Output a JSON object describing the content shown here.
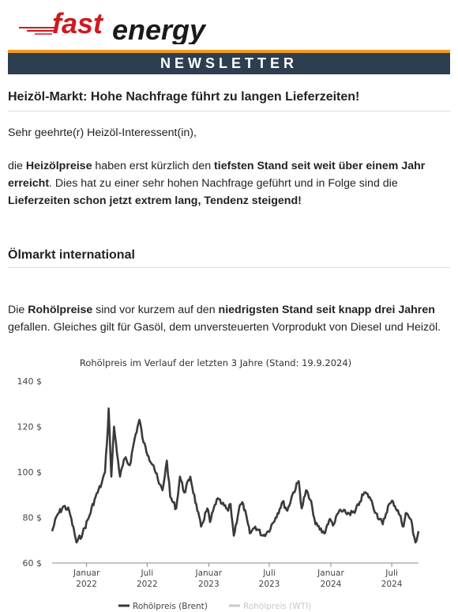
{
  "brand": {
    "part1": "fast",
    "part2": "energy",
    "accent_color": "#d0181f"
  },
  "banner": {
    "label": "NEWSLETTER",
    "bg_color": "#2d3e50",
    "stripe_color": "#f29a1c"
  },
  "headline": "Heizöl-Markt: Hohe Nachfrage führt zu langen Lieferzeiten!",
  "greeting": "Sehr geehrte(r) Heizöl-Interessent(in),",
  "para1": [
    {
      "t": "die ",
      "b": false
    },
    {
      "t": "Heizölpreise",
      "b": true
    },
    {
      "t": " haben erst kürzlich den ",
      "b": false
    },
    {
      "t": "tiefsten Stand seit weit über einem Jahr erreicht",
      "b": true
    },
    {
      "t": ". Dies hat zu einer sehr hohen Nachfrage geführt und in Folge sind die ",
      "b": false
    },
    {
      "t": "Lieferzeiten schon jetzt extrem lang, Tendenz steigend!",
      "b": true
    }
  ],
  "section_title": "Ölmarkt international",
  "para2": [
    {
      "t": "Die ",
      "b": false
    },
    {
      "t": "Rohölpreise",
      "b": true
    },
    {
      "t": " sind vor kurzem auf den ",
      "b": false
    },
    {
      "t": "niedrigsten Stand seit knapp drei Jahren",
      "b": true
    },
    {
      "t": " gefallen. Gleiches gilt für Gasöl, dem unversteuerten Vorprodukt von Diesel und Heizöl.",
      "b": false
    }
  ],
  "chart_data": {
    "type": "line",
    "title": "Rohölpreis im Verlauf der letzten 3 Jahre (Stand: 19.9.2024)",
    "ylim": [
      60,
      140
    ],
    "y_ticks": [
      "60 $",
      "80 $",
      "100 $",
      "120 $",
      "140 $"
    ],
    "x_ticks": [
      {
        "l1": "Januar",
        "l2": "2022",
        "date": "2022-01-01"
      },
      {
        "l1": "Juli",
        "l2": "2022",
        "date": "2022-07-01"
      },
      {
        "l1": "Januar",
        "l2": "2023",
        "date": "2023-01-01"
      },
      {
        "l1": "Juli",
        "l2": "2023",
        "date": "2023-07-01"
      },
      {
        "l1": "Januar",
        "l2": "2024",
        "date": "2024-01-01"
      },
      {
        "l1": "Juli",
        "l2": "2024",
        "date": "2024-07-01"
      }
    ],
    "x_range": [
      "2021-09-20",
      "2024-09-19"
    ],
    "series": [
      {
        "name": "Rohölpreis (Brent)",
        "color": "#3a3a3a",
        "visible": true,
        "points": [
          [
            "2021-09-20",
            74
          ],
          [
            "2021-10-05",
            81
          ],
          [
            "2021-10-25",
            85
          ],
          [
            "2021-11-10",
            83
          ],
          [
            "2021-11-26",
            73
          ],
          [
            "2021-12-02",
            69
          ],
          [
            "2021-12-20",
            73
          ],
          [
            "2022-01-10",
            81
          ],
          [
            "2022-01-25",
            88
          ],
          [
            "2022-02-15",
            95
          ],
          [
            "2022-02-25",
            100
          ],
          [
            "2022-03-03",
            113
          ],
          [
            "2022-03-08",
            128
          ],
          [
            "2022-03-16",
            98
          ],
          [
            "2022-03-24",
            120
          ],
          [
            "2022-04-05",
            105
          ],
          [
            "2022-04-11",
            98
          ],
          [
            "2022-04-25",
            106
          ],
          [
            "2022-05-10",
            103
          ],
          [
            "2022-05-25",
            115
          ],
          [
            "2022-06-08",
            123
          ],
          [
            "2022-06-20",
            113
          ],
          [
            "2022-07-05",
            107
          ],
          [
            "2022-07-20",
            103
          ],
          [
            "2022-08-05",
            95
          ],
          [
            "2022-08-16",
            92
          ],
          [
            "2022-08-29",
            105
          ],
          [
            "2022-09-08",
            89
          ],
          [
            "2022-09-26",
            84
          ],
          [
            "2022-10-07",
            98
          ],
          [
            "2022-10-20",
            91
          ],
          [
            "2022-11-07",
            98
          ],
          [
            "2022-11-28",
            83
          ],
          [
            "2022-12-09",
            76
          ],
          [
            "2022-12-28",
            84
          ],
          [
            "2023-01-05",
            78
          ],
          [
            "2023-01-25",
            88
          ],
          [
            "2023-02-10",
            86
          ],
          [
            "2023-02-28",
            83
          ],
          [
            "2023-03-07",
            86
          ],
          [
            "2023-03-17",
            72
          ],
          [
            "2023-04-03",
            85
          ],
          [
            "2023-04-14",
            86
          ],
          [
            "2023-05-04",
            73
          ],
          [
            "2023-05-20",
            76
          ],
          [
            "2023-06-12",
            72
          ],
          [
            "2023-06-28",
            74
          ],
          [
            "2023-07-20",
            80
          ],
          [
            "2023-08-10",
            87
          ],
          [
            "2023-08-24",
            83
          ],
          [
            "2023-09-08",
            90
          ],
          [
            "2023-09-27",
            96
          ],
          [
            "2023-10-06",
            84
          ],
          [
            "2023-10-19",
            92
          ],
          [
            "2023-11-06",
            85
          ],
          [
            "2023-11-16",
            77
          ],
          [
            "2023-12-12",
            73
          ],
          [
            "2023-12-27",
            79
          ],
          [
            "2024-01-10",
            77
          ],
          [
            "2024-01-26",
            83
          ],
          [
            "2024-02-15",
            82
          ],
          [
            "2024-03-12",
            82
          ],
          [
            "2024-03-28",
            87
          ],
          [
            "2024-04-10",
            91
          ],
          [
            "2024-04-26",
            89
          ],
          [
            "2024-05-15",
            82
          ],
          [
            "2024-06-04",
            77
          ],
          [
            "2024-06-20",
            85
          ],
          [
            "2024-07-05",
            87
          ],
          [
            "2024-07-25",
            81
          ],
          [
            "2024-08-05",
            76
          ],
          [
            "2024-08-12",
            82
          ],
          [
            "2024-08-28",
            79
          ],
          [
            "2024-09-03",
            73
          ],
          [
            "2024-09-10",
            69
          ],
          [
            "2024-09-19",
            74
          ]
        ]
      },
      {
        "name": "Rohölpreis (WTI)",
        "color": "#c8c8c8",
        "visible": false,
        "points": []
      }
    ],
    "grid": false,
    "legend_position": "bottom-center"
  }
}
